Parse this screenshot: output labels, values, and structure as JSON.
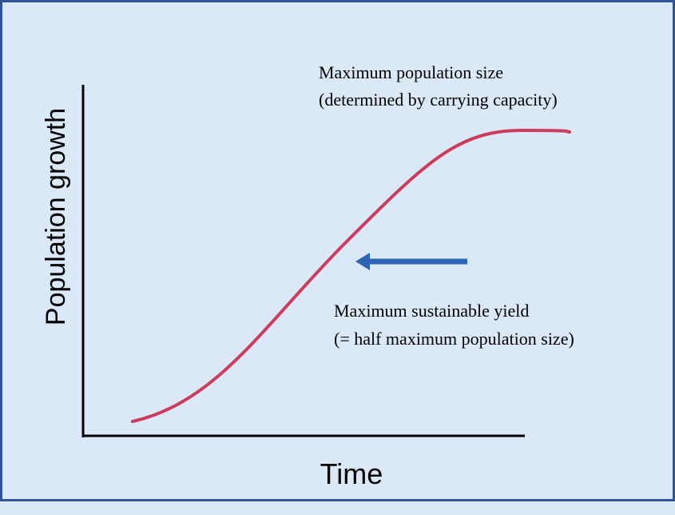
{
  "chart_data": {
    "type": "line",
    "xlabel": "Time",
    "ylabel": "Population growth",
    "grid": false,
    "colors": {
      "curve": "#cd3c5b",
      "arrow": "#2e64b5",
      "axis": "#000000"
    },
    "annotations": {
      "top": [
        "Maximum population size",
        "(determined by carrying capacity)"
      ],
      "middle": [
        "Maximum sustainable yield",
        "(= half maximum population size)"
      ]
    }
  }
}
